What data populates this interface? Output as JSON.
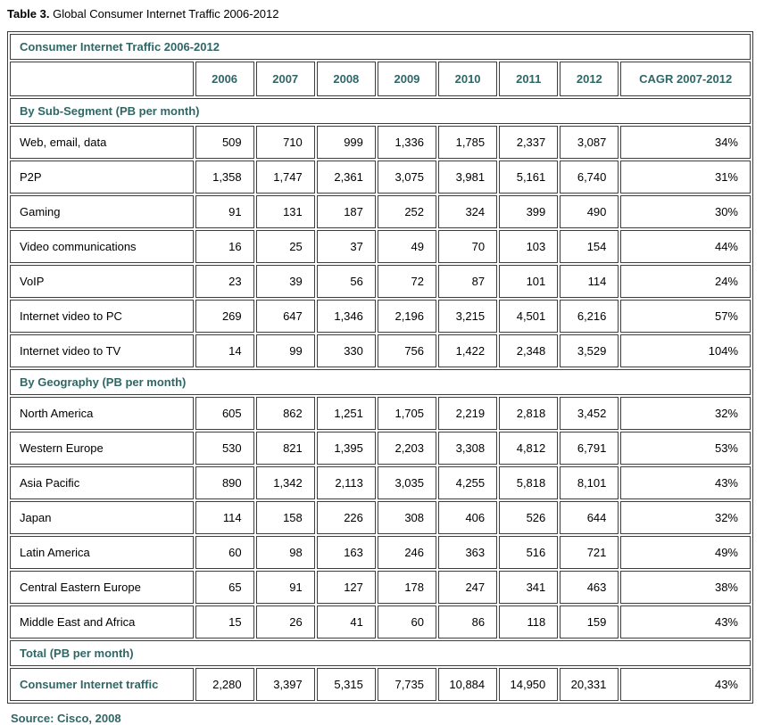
{
  "page": {
    "title_label": "Table 3.",
    "title_text": "Global Consumer Internet Traffic 2006-2012",
    "source": "Source: Cisco, 2008"
  },
  "colors": {
    "accent_teal": "#2f6666",
    "border_gray": "#3d3d3d",
    "text_black": "#000000",
    "background": "#ffffff"
  },
  "table": {
    "caption": "Consumer Internet Traffic 2006-2012",
    "year_columns": [
      "2006",
      "2007",
      "2008",
      "2009",
      "2010",
      "2011",
      "2012"
    ],
    "cagr_column": "CAGR 2007-2012",
    "sections": [
      {
        "header": "By Sub-Segment (PB per month)",
        "rows": [
          {
            "label": "Web, email, data",
            "values": [
              "509",
              "710",
              "999",
              "1,336",
              "1,785",
              "2,337",
              "3,087"
            ],
            "cagr": "34%"
          },
          {
            "label": "P2P",
            "values": [
              "1,358",
              "1,747",
              "2,361",
              "3,075",
              "3,981",
              "5,161",
              "6,740"
            ],
            "cagr": "31%"
          },
          {
            "label": "Gaming",
            "values": [
              "91",
              "131",
              "187",
              "252",
              "324",
              "399",
              "490"
            ],
            "cagr": "30%"
          },
          {
            "label": "Video communications",
            "values": [
              "16",
              "25",
              "37",
              "49",
              "70",
              "103",
              "154"
            ],
            "cagr": "44%"
          },
          {
            "label": "VoIP",
            "values": [
              "23",
              "39",
              "56",
              "72",
              "87",
              "101",
              "114"
            ],
            "cagr": "24%"
          },
          {
            "label": "Internet video to PC",
            "values": [
              "269",
              "647",
              "1,346",
              "2,196",
              "3,215",
              "4,501",
              "6,216"
            ],
            "cagr": "57%"
          },
          {
            "label": "Internet video to TV",
            "values": [
              "14",
              "99",
              "330",
              "756",
              "1,422",
              "2,348",
              "3,529"
            ],
            "cagr": "104%"
          }
        ]
      },
      {
        "header": "By Geography (PB per month)",
        "rows": [
          {
            "label": "North America",
            "values": [
              "605",
              "862",
              "1,251",
              "1,705",
              "2,219",
              "2,818",
              "3,452"
            ],
            "cagr": "32%"
          },
          {
            "label": "Western Europe",
            "values": [
              "530",
              "821",
              "1,395",
              "2,203",
              "3,308",
              "4,812",
              "6,791"
            ],
            "cagr": "53%"
          },
          {
            "label": "Asia Pacific",
            "values": [
              "890",
              "1,342",
              "2,113",
              "3,035",
              "4,255",
              "5,818",
              "8,101"
            ],
            "cagr": "43%"
          },
          {
            "label": "Japan",
            "values": [
              "114",
              "158",
              "226",
              "308",
              "406",
              "526",
              "644"
            ],
            "cagr": "32%"
          },
          {
            "label": "Latin America",
            "values": [
              "60",
              "98",
              "163",
              "246",
              "363",
              "516",
              "721"
            ],
            "cagr": "49%"
          },
          {
            "label": "Central Eastern Europe",
            "values": [
              "65",
              "91",
              "127",
              "178",
              "247",
              "341",
              "463"
            ],
            "cagr": "38%"
          },
          {
            "label": "Middle East and Africa",
            "values": [
              "15",
              "26",
              "41",
              "60",
              "86",
              "118",
              "159"
            ],
            "cagr": "43%"
          }
        ]
      },
      {
        "header": "Total (PB per month)",
        "rows": [
          {
            "label": "Consumer Internet traffic",
            "emphasis": true,
            "values": [
              "2,280",
              "3,397",
              "5,315",
              "7,735",
              "10,884",
              "14,950",
              "20,331"
            ],
            "cagr": "43%"
          }
        ]
      }
    ]
  },
  "chart_data": {
    "type": "table",
    "title": "Consumer Internet Traffic 2006-2012",
    "unit": "PB per month",
    "x": [
      2006,
      2007,
      2008,
      2009,
      2010,
      2011,
      2012
    ],
    "cagr_label": "CAGR 2007-2012",
    "groups": [
      {
        "name": "By Sub-Segment (PB per month)",
        "series": [
          {
            "name": "Web, email, data",
            "values": [
              509,
              710,
              999,
              1336,
              1785,
              2337,
              3087
            ],
            "cagr": "34%"
          },
          {
            "name": "P2P",
            "values": [
              1358,
              1747,
              2361,
              3075,
              3981,
              5161,
              6740
            ],
            "cagr": "31%"
          },
          {
            "name": "Gaming",
            "values": [
              91,
              131,
              187,
              252,
              324,
              399,
              490
            ],
            "cagr": "30%"
          },
          {
            "name": "Video communications",
            "values": [
              16,
              25,
              37,
              49,
              70,
              103,
              154
            ],
            "cagr": "44%"
          },
          {
            "name": "VoIP",
            "values": [
              23,
              39,
              56,
              72,
              87,
              101,
              114
            ],
            "cagr": "24%"
          },
          {
            "name": "Internet video to PC",
            "values": [
              269,
              647,
              1346,
              2196,
              3215,
              4501,
              6216
            ],
            "cagr": "57%"
          },
          {
            "name": "Internet video to TV",
            "values": [
              14,
              99,
              330,
              756,
              1422,
              2348,
              3529
            ],
            "cagr": "104%"
          }
        ]
      },
      {
        "name": "By Geography (PB per month)",
        "series": [
          {
            "name": "North America",
            "values": [
              605,
              862,
              1251,
              1705,
              2219,
              2818,
              3452
            ],
            "cagr": "32%"
          },
          {
            "name": "Western Europe",
            "values": [
              530,
              821,
              1395,
              2203,
              3308,
              4812,
              6791
            ],
            "cagr": "53%"
          },
          {
            "name": "Asia Pacific",
            "values": [
              890,
              1342,
              2113,
              3035,
              4255,
              5818,
              8101
            ],
            "cagr": "43%"
          },
          {
            "name": "Japan",
            "values": [
              114,
              158,
              226,
              308,
              406,
              526,
              644
            ],
            "cagr": "32%"
          },
          {
            "name": "Latin America",
            "values": [
              60,
              98,
              163,
              246,
              363,
              516,
              721
            ],
            "cagr": "49%"
          },
          {
            "name": "Central Eastern Europe",
            "values": [
              65,
              91,
              127,
              178,
              247,
              341,
              463
            ],
            "cagr": "38%"
          },
          {
            "name": "Middle East and Africa",
            "values": [
              15,
              26,
              41,
              60,
              86,
              118,
              159
            ],
            "cagr": "43%"
          }
        ]
      },
      {
        "name": "Total (PB per month)",
        "series": [
          {
            "name": "Consumer Internet traffic",
            "values": [
              2280,
              3397,
              5315,
              7735,
              10884,
              14950,
              20331
            ],
            "cagr": "43%"
          }
        ]
      }
    ]
  }
}
